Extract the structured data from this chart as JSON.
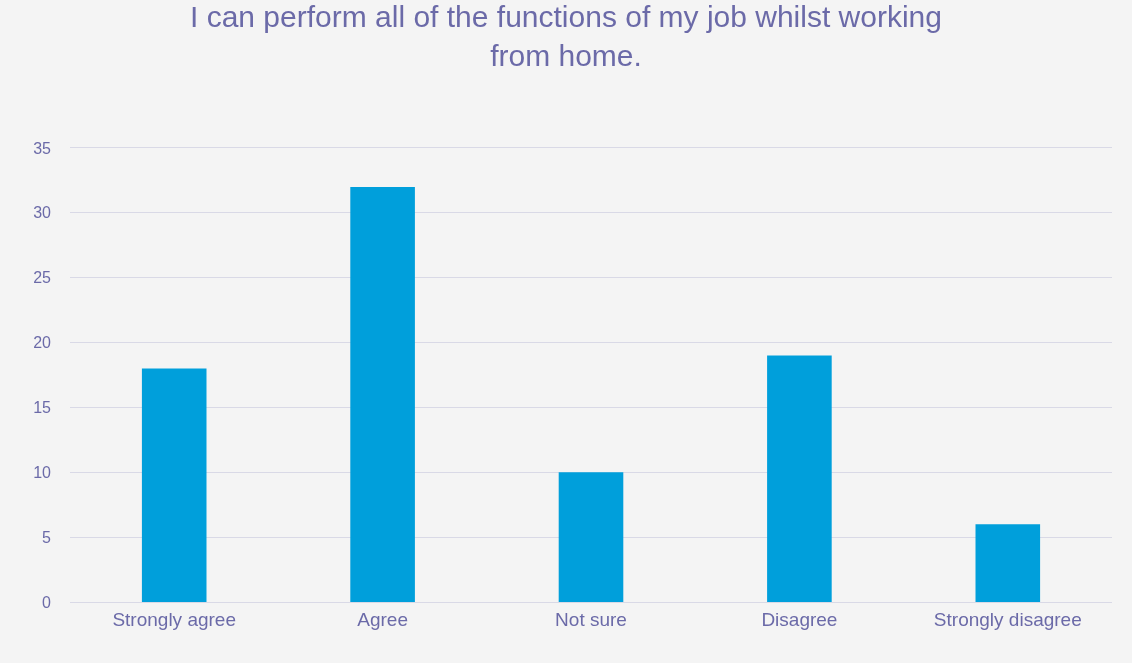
{
  "chart_data": {
    "type": "bar",
    "title": "I can perform all of the functions of my job whilst working from home.",
    "categories": [
      "Strongly agree",
      "Agree",
      "Not sure",
      "Disagree",
      "Strongly disagree"
    ],
    "values": [
      18,
      32,
      10,
      19,
      6
    ],
    "color": "#009fdb",
    "ylim": [
      0,
      35
    ],
    "yticks": [
      0,
      5,
      10,
      15,
      20,
      25,
      30,
      35
    ],
    "grid": "y"
  }
}
